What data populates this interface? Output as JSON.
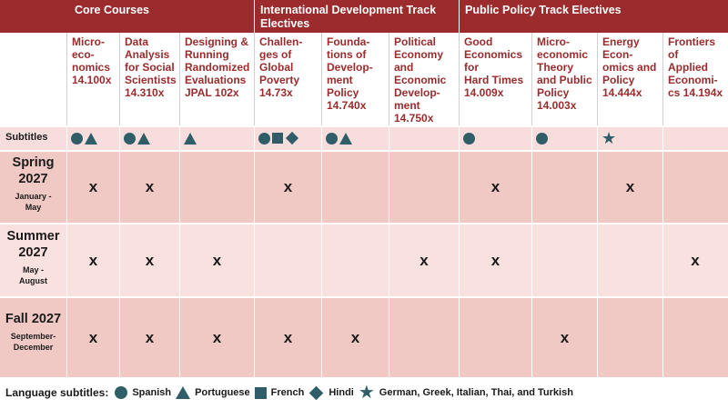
{
  "tracks": {
    "core": "Core Courses",
    "intl": "International Development Track Electives",
    "policy": "Public Policy Track Electives"
  },
  "courses": [
    {
      "title": "Micro-\neco-\nnomics\n14.100x",
      "subtitles": [
        "circle-icon",
        "triangle-icon"
      ],
      "spring": "x",
      "summer": "x",
      "fall": "x"
    },
    {
      "title": "Data\nAnalysis\nfor Social\nScientists\n14.310x",
      "subtitles": [
        "circle-icon",
        "triangle-icon"
      ],
      "spring": "x",
      "summer": "x",
      "fall": "x"
    },
    {
      "title": "Designing &\nRunning\nRandomized\nEvaluations\nJPAL 102x",
      "subtitles": [
        "triangle-icon"
      ],
      "spring": "",
      "summer": "x",
      "fall": "x"
    },
    {
      "title": "Challen-\nges of\nGlobal\nPoverty\n14.73x",
      "subtitles": [
        "circle-icon",
        "square-icon",
        "diamond-icon"
      ],
      "spring": "x",
      "summer": "",
      "fall": "x"
    },
    {
      "title": "Founda-\ntions of\nDevelop-\nment Policy\n14.740x",
      "subtitles": [
        "circle-icon",
        "triangle-icon"
      ],
      "spring": "",
      "summer": "",
      "fall": "x"
    },
    {
      "title": "Political\nEconomy\nand\nEconomic\nDevelop-\nment\n14.750x",
      "subtitles": [],
      "spring": "",
      "summer": "x",
      "fall": ""
    },
    {
      "title": "Good\nEconomics\nfor\nHard Times\n14.009x",
      "subtitles": [
        "circle-icon"
      ],
      "spring": "x",
      "summer": "x",
      "fall": ""
    },
    {
      "title": "Micro-\neconomic\nTheory\nand Public\nPolicy\n14.003x",
      "subtitles": [
        "circle-icon"
      ],
      "spring": "",
      "summer": "",
      "fall": "x"
    },
    {
      "title": "Energy\nEcon-\nomics and\nPolicy\n14.444x",
      "subtitles": [
        "star-icon"
      ],
      "spring": "x",
      "summer": "",
      "fall": ""
    },
    {
      "title": "Frontiers of\nApplied\nEconomi-\ncs 14.194x",
      "subtitles": [],
      "spring": "",
      "summer": "x",
      "fall": ""
    }
  ],
  "rows": {
    "subtitles": "Subtitles",
    "spring": {
      "title": "Spring\n2027",
      "dates": "January -\nMay"
    },
    "summer": {
      "title": "Summer\n2027",
      "dates": "May -\nAugust"
    },
    "fall": {
      "title": "Fall 2027",
      "dates": "September-\nDecember"
    }
  },
  "legend": {
    "title": "Language subtitles:",
    "items": [
      {
        "icon": "circle-icon",
        "label": "Spanish"
      },
      {
        "icon": "triangle-icon",
        "label": "Portuguese"
      },
      {
        "icon": "square-icon",
        "label": "French"
      },
      {
        "icon": "diamond-icon",
        "label": "Hindi"
      },
      {
        "icon": "star-icon",
        "label": "German, Greek, Italian, Thai, and Turkish"
      }
    ]
  },
  "colors": {
    "header": "#9b2b2c",
    "icon": "#2f5e68",
    "row_dark": "#f1c9c4",
    "row_light": "#f8e1de"
  }
}
